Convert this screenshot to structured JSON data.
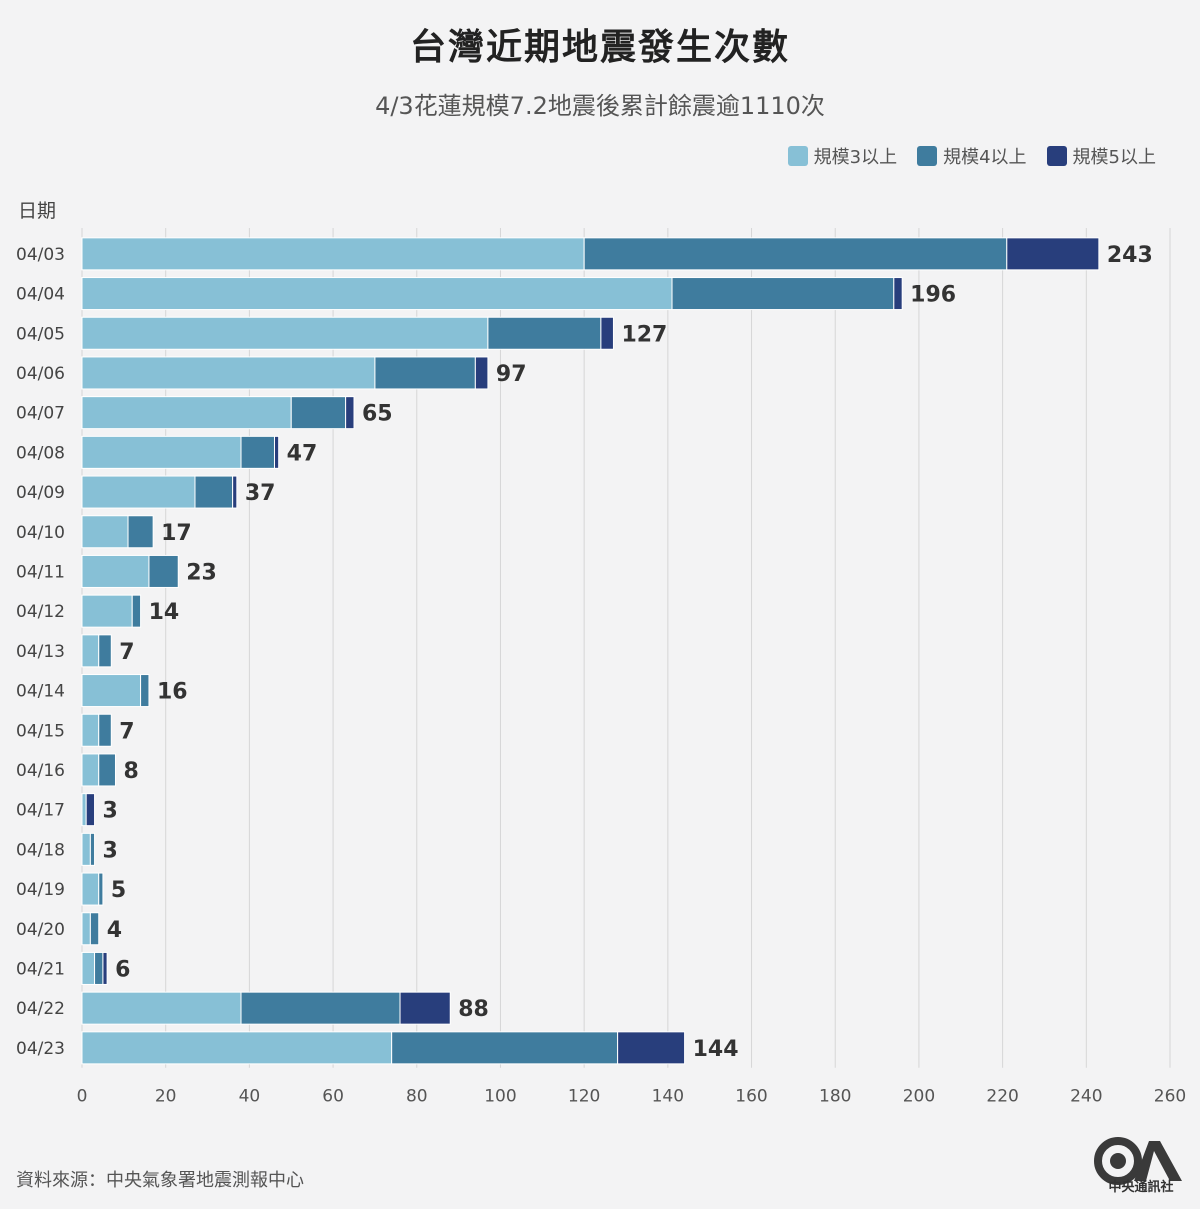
{
  "title": "台灣近期地震發生次數",
  "subtitle": "4/3花蓮規模7.2地震後累計餘震逾1110次",
  "y_axis_title": "日期",
  "source": "資料來源：中央氣象署地震測報中心",
  "logo_text": "中央通訊社",
  "colors": {
    "m3": "#87c0d6",
    "m4": "#3f7c9e",
    "m5": "#283e7c",
    "grid": "#d6d6d6",
    "label": "#444444"
  },
  "chart_data": {
    "type": "bar",
    "orientation": "horizontal",
    "stacked": true,
    "title": "台灣近期地震發生次數",
    "subtitle": "4/3花蓮規模7.2地震後累計餘震逾1110次",
    "ylabel": "日期",
    "xlim": [
      0,
      260
    ],
    "x_ticks": [
      0,
      20,
      40,
      60,
      80,
      100,
      120,
      140,
      160,
      180,
      200,
      220,
      240,
      260
    ],
    "grid": "vertical",
    "legend_position": "top-right",
    "categories": [
      "04/03",
      "04/04",
      "04/05",
      "04/06",
      "04/07",
      "04/08",
      "04/09",
      "04/10",
      "04/11",
      "04/12",
      "04/13",
      "04/14",
      "04/15",
      "04/16",
      "04/17",
      "04/18",
      "04/19",
      "04/20",
      "04/21",
      "04/22",
      "04/23"
    ],
    "series": [
      {
        "name": "規模3以上",
        "color": "#87c0d6",
        "values": [
          120,
          141,
          97,
          70,
          50,
          38,
          27,
          11,
          16,
          12,
          4,
          14,
          4,
          4,
          1,
          2,
          4,
          2,
          3,
          38,
          74
        ]
      },
      {
        "name": "規模4以上",
        "color": "#3f7c9e",
        "values": [
          101,
          53,
          27,
          24,
          13,
          8,
          9,
          6,
          7,
          2,
          3,
          2,
          3,
          4,
          0,
          1,
          1,
          2,
          2,
          38,
          54
        ]
      },
      {
        "name": "規模5以上",
        "color": "#283e7c",
        "values": [
          22,
          2,
          3,
          3,
          2,
          1,
          1,
          0,
          0,
          0,
          0,
          0,
          0,
          0,
          2,
          0,
          0,
          0,
          1,
          12,
          16
        ]
      }
    ],
    "totals": [
      243,
      196,
      127,
      97,
      65,
      47,
      37,
      17,
      23,
      14,
      7,
      16,
      7,
      8,
      3,
      3,
      5,
      4,
      6,
      88,
      144
    ]
  }
}
